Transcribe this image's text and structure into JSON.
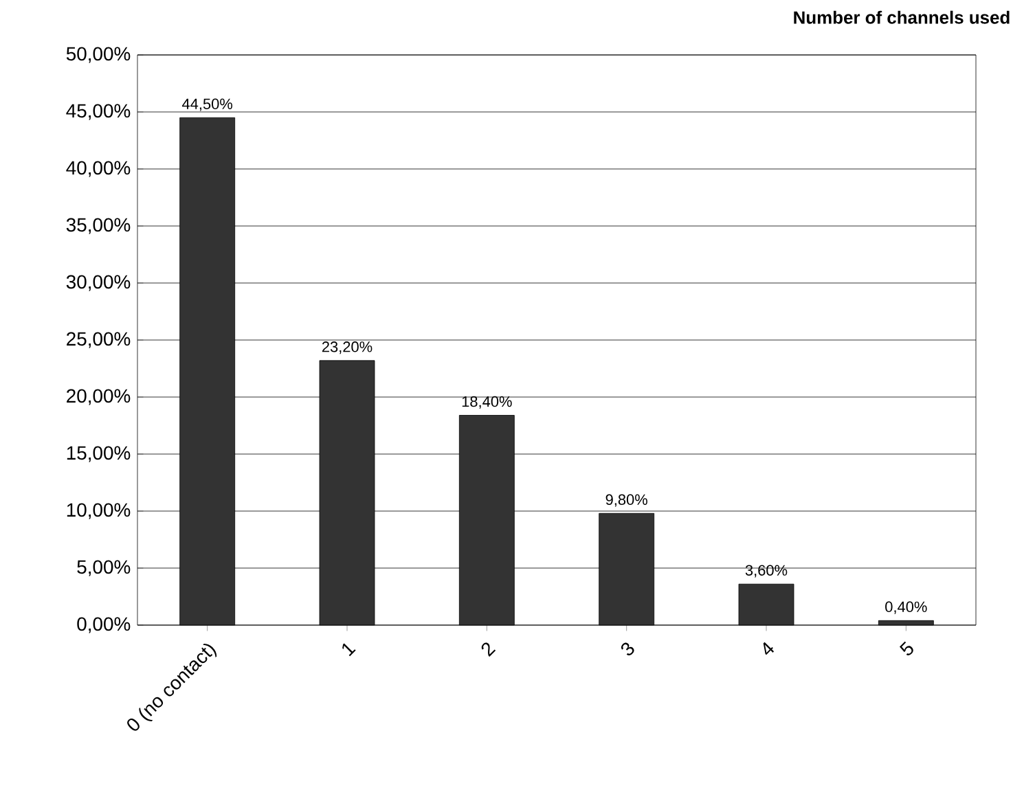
{
  "chart_data": {
    "type": "bar",
    "title": "Number of channels used",
    "categories": [
      "0 (no contact)",
      "1",
      "2",
      "3",
      "4",
      "5"
    ],
    "values": [
      44.5,
      23.2,
      18.4,
      9.8,
      3.6,
      0.4
    ],
    "value_labels": [
      "44,50%",
      "23,20%",
      "18,40%",
      "9,80%",
      "3,60%",
      "0,40%"
    ],
    "color": "#333333",
    "ylim": [
      0,
      50
    ],
    "yticks": [
      {
        "value": 0,
        "label": "0,00%"
      },
      {
        "value": 5,
        "label": "5,00%"
      },
      {
        "value": 10,
        "label": "10,00%"
      },
      {
        "value": 15,
        "label": "15,00%"
      },
      {
        "value": 20,
        "label": "20,00%"
      },
      {
        "value": 25,
        "label": "25,00%"
      },
      {
        "value": 30,
        "label": "30,00%"
      },
      {
        "value": 35,
        "label": "35,00%"
      },
      {
        "value": 40,
        "label": "40,00%"
      },
      {
        "value": 45,
        "label": "45,00%"
      },
      {
        "value": 50,
        "label": "50,00%"
      }
    ],
    "grid": "y"
  }
}
